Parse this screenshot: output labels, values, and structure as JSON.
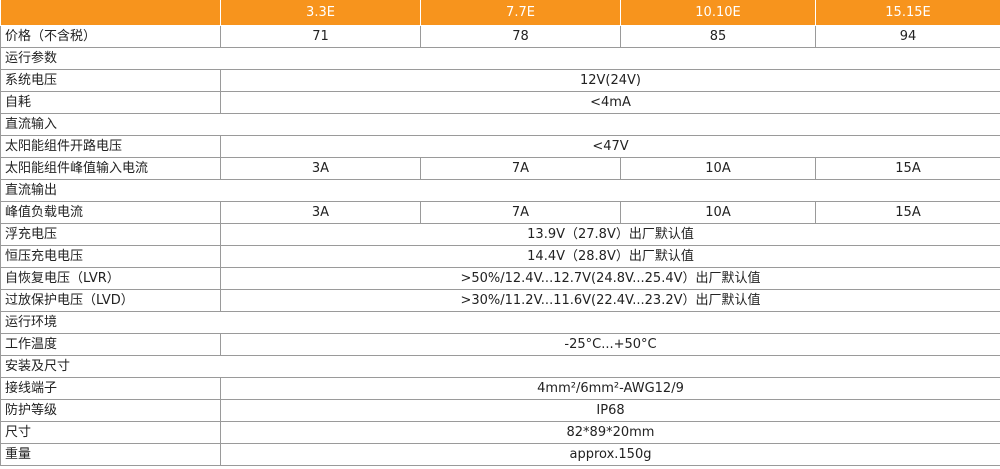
{
  "table": {
    "header": [
      "3.3E",
      "7.7E",
      "10.10E",
      "15.15E"
    ],
    "rows": [
      [
        "价格（不含税）",
        "71",
        "78",
        "85",
        "94"
      ],
      [
        "运行参数"
      ],
      [
        "系统电压",
        "12V(24V)"
      ],
      [
        "自耗",
        "<4mA"
      ],
      [
        "直流输入"
      ],
      [
        "太阳能组件开路电压",
        "<47V"
      ],
      [
        "太阳能组件峰值输入电流",
        "3A",
        "7A",
        "10A",
        "15A"
      ],
      [
        "直流输出"
      ],
      [
        "峰值负载电流",
        "3A",
        "7A",
        "10A",
        "15A"
      ],
      [
        "浮充电压",
        "13.9V（27.8V）出厂默认值"
      ],
      [
        "恒压充电电压",
        "14.4V（28.8V）出厂默认值"
      ],
      [
        "自恢复电压（LVR）",
        ">50%/12.4V...12.7V(24.8V...25.4V）出厂默认值"
      ],
      [
        "过放保护电压（LVD）",
        ">30%/11.2V...11.6V(22.4V...23.2V）出厂默认值"
      ],
      [
        "运行环境"
      ],
      [
        "工作温度",
        "-25°C...+50°C"
      ],
      [
        "安装及尺寸"
      ],
      [
        "接线端子",
        "4mm²/6mm²-AWG12/9"
      ],
      [
        "防护等级",
        "IP68"
      ],
      [
        "尺寸",
        "82*89*20mm"
      ],
      [
        "重量",
        "approx.150g"
      ]
    ]
  }
}
